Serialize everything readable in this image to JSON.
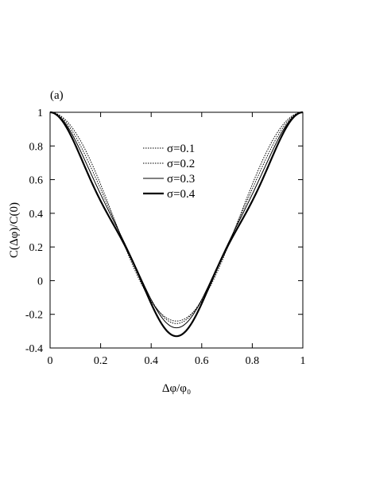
{
  "chart_data": {
    "type": "line",
    "panel_label": "(a)",
    "xlabel": "Δφ/φ₀",
    "ylabel": "C(Δφ)/C(0)",
    "xlim": [
      0,
      1
    ],
    "ylim": [
      -0.4,
      1
    ],
    "x_ticks": [
      "0",
      "0.2",
      "0.4",
      "0.6",
      "0.8",
      "1"
    ],
    "y_ticks": [
      "-0.4",
      "-0.2",
      "0",
      "0.2",
      "0.4",
      "0.6",
      "0.8",
      "1"
    ],
    "legend_position": "upper-center",
    "series": [
      {
        "name": "σ=0.1",
        "style": "dotted",
        "stroke_color": "#000000",
        "minimum_at_half": -0.24
      },
      {
        "name": "σ=0.2",
        "style": "dotted",
        "stroke_color": "#000000",
        "minimum_at_half": -0.255
      },
      {
        "name": "σ=0.3",
        "style": "thin-solid",
        "stroke_color": "#000000",
        "minimum_at_half": -0.28
      },
      {
        "name": "σ=0.4",
        "style": "thick-solid",
        "stroke_color": "#000000",
        "minimum_at_half": -0.33
      }
    ],
    "x": [
      0,
      0.05,
      0.1,
      0.15,
      0.2,
      0.25,
      0.3,
      0.35,
      0.4,
      0.45,
      0.5,
      0.55,
      0.6,
      0.65,
      0.7,
      0.75,
      0.8,
      0.85,
      0.9,
      0.95,
      1
    ]
  }
}
